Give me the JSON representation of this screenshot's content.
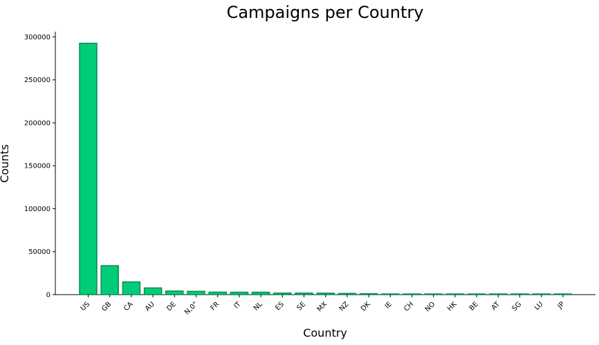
{
  "chart_data": {
    "type": "bar",
    "title": "Campaigns per Country",
    "xlabel": "Country",
    "ylabel": "Counts",
    "ylim": [
      0,
      306000
    ],
    "yticks": [
      0,
      50000,
      100000,
      150000,
      200000,
      250000,
      300000
    ],
    "categories": [
      "US",
      "GB",
      "CA",
      "AU",
      "DE",
      "N,0\"",
      "FR",
      "IT",
      "NL",
      "ES",
      "SE",
      "MX",
      "NZ",
      "DK",
      "IE",
      "CH",
      "NO",
      "HK",
      "BE",
      "AT",
      "SG",
      "LU",
      "JP"
    ],
    "values": [
      292600,
      33700,
      14800,
      7800,
      4200,
      3800,
      2900,
      2800,
      2800,
      1800,
      1800,
      1700,
      1400,
      1100,
      800,
      800,
      600,
      600,
      600,
      500,
      500,
      100,
      40
    ],
    "colors": {
      "bar_fill": "#00cc77",
      "bar_edge": "#0b8a52"
    },
    "grid": false,
    "legend": "none"
  }
}
